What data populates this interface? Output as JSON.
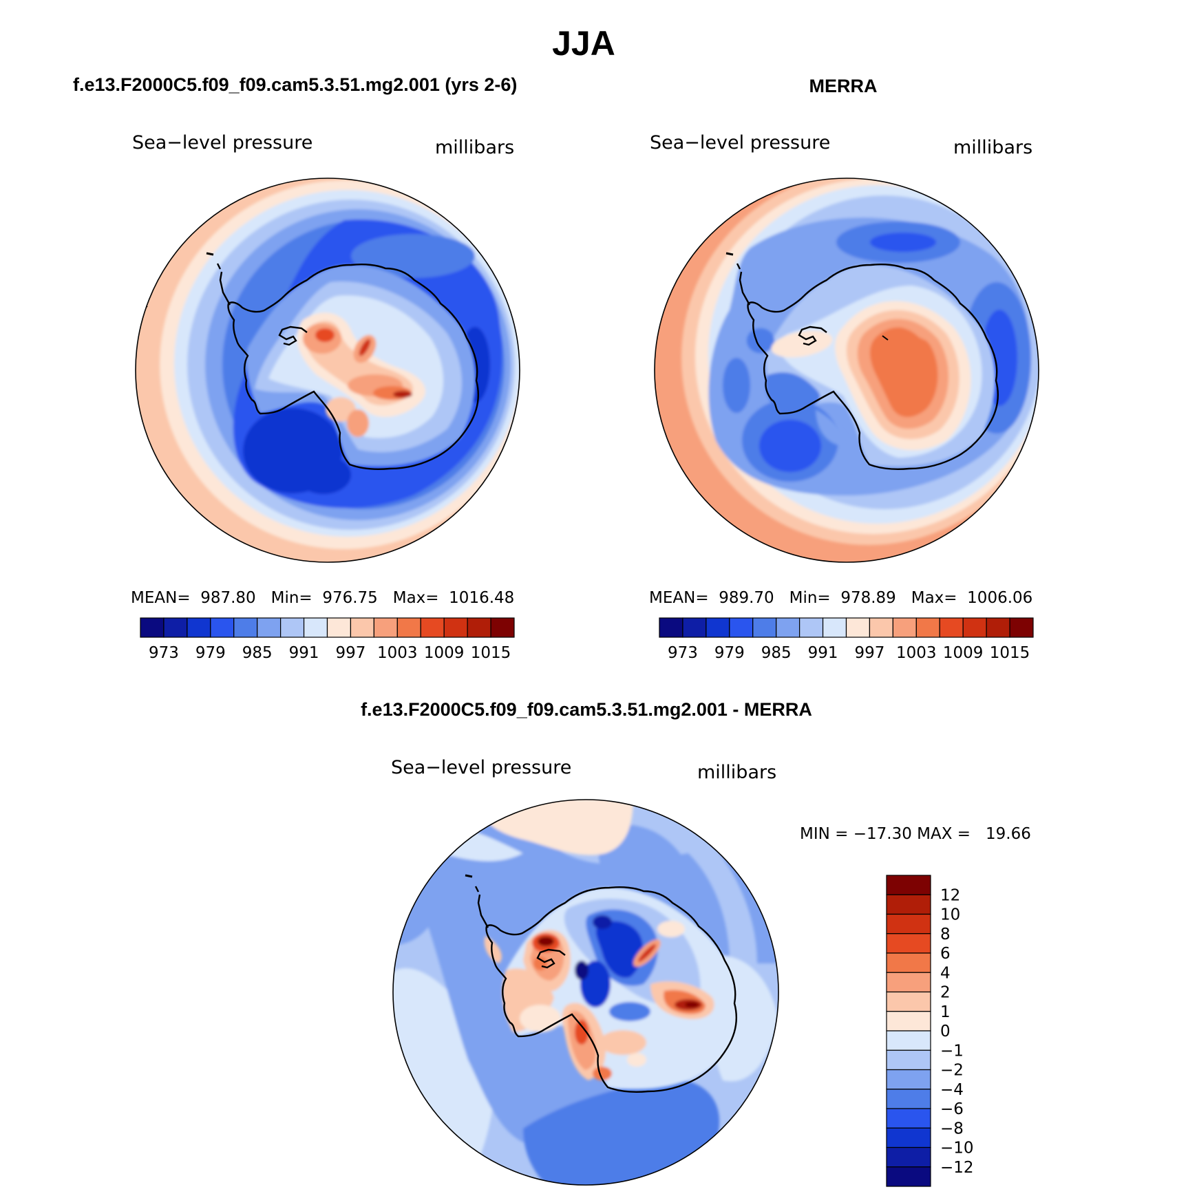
{
  "chart_data": [
    {
      "type": "contour-map",
      "panel": "model",
      "title": "f.e13.F2000C5.f09_f09.cam5.3.51.mg2.001 (yrs 2-6)",
      "left_label": "Sea−level pressure",
      "right_label": "millibars",
      "stats": "MEAN=  987.80   Min=  976.75   Max=  1016.48",
      "mean": 987.8,
      "min": 976.75,
      "max": 1016.48,
      "colorbar": {
        "colors": [
          "#0a0a80",
          "#0e1ea6",
          "#1036d0",
          "#2a55ee",
          "#4e7de8",
          "#7ea2f0",
          "#aec6f6",
          "#d8e7fb",
          "#fde7d8",
          "#fbc7ab",
          "#f7a07c",
          "#f17848",
          "#e64a22",
          "#d03212",
          "#b01e08",
          "#7d0202"
        ],
        "labels": [
          "973",
          "979",
          "985",
          "991",
          "997",
          "1003",
          "1009",
          "1015"
        ]
      }
    },
    {
      "type": "contour-map",
      "panel": "obs",
      "title": "MERRA",
      "left_label": "Sea−level pressure",
      "right_label": "millibars",
      "stats": "MEAN=  989.70   Min=  978.89   Max=  1006.06",
      "mean": 989.7,
      "min": 978.89,
      "max": 1006.06,
      "colorbar": {
        "colors": [
          "#0a0a80",
          "#0e1ea6",
          "#1036d0",
          "#2a55ee",
          "#4e7de8",
          "#7ea2f0",
          "#aec6f6",
          "#d8e7fb",
          "#fde7d8",
          "#fbc7ab",
          "#f7a07c",
          "#f17848",
          "#e64a22",
          "#d03212",
          "#b01e08",
          "#7d0202"
        ],
        "labels": [
          "973",
          "979",
          "985",
          "991",
          "997",
          "1003",
          "1009",
          "1015"
        ]
      }
    },
    {
      "type": "contour-map",
      "panel": "difference",
      "title": "f.e13.F2000C5.f09_f09.cam5.3.51.mg2.001 - MERRA",
      "left_label": "Sea−level pressure",
      "right_label": "millibars",
      "stats": "MIN = −17.30 MAX =   19.66",
      "min": -17.3,
      "max": 19.66,
      "colorbar": {
        "colors": [
          "#7d0202",
          "#b01e08",
          "#d03212",
          "#e64a22",
          "#f17848",
          "#f7a07c",
          "#fbc7ab",
          "#fde7d8",
          "#d8e7fb",
          "#aec6f6",
          "#7ea2f0",
          "#4e7de8",
          "#2a55ee",
          "#1036d0",
          "#0e1ea6",
          "#0a0a80"
        ],
        "labels": [
          "12",
          "10",
          "8",
          "6",
          "4",
          "2",
          "1",
          "0",
          "−1",
          "−2",
          "−4",
          "−6",
          "−8",
          "−10",
          "−12"
        ]
      }
    }
  ],
  "page": {
    "title": "JJA"
  }
}
